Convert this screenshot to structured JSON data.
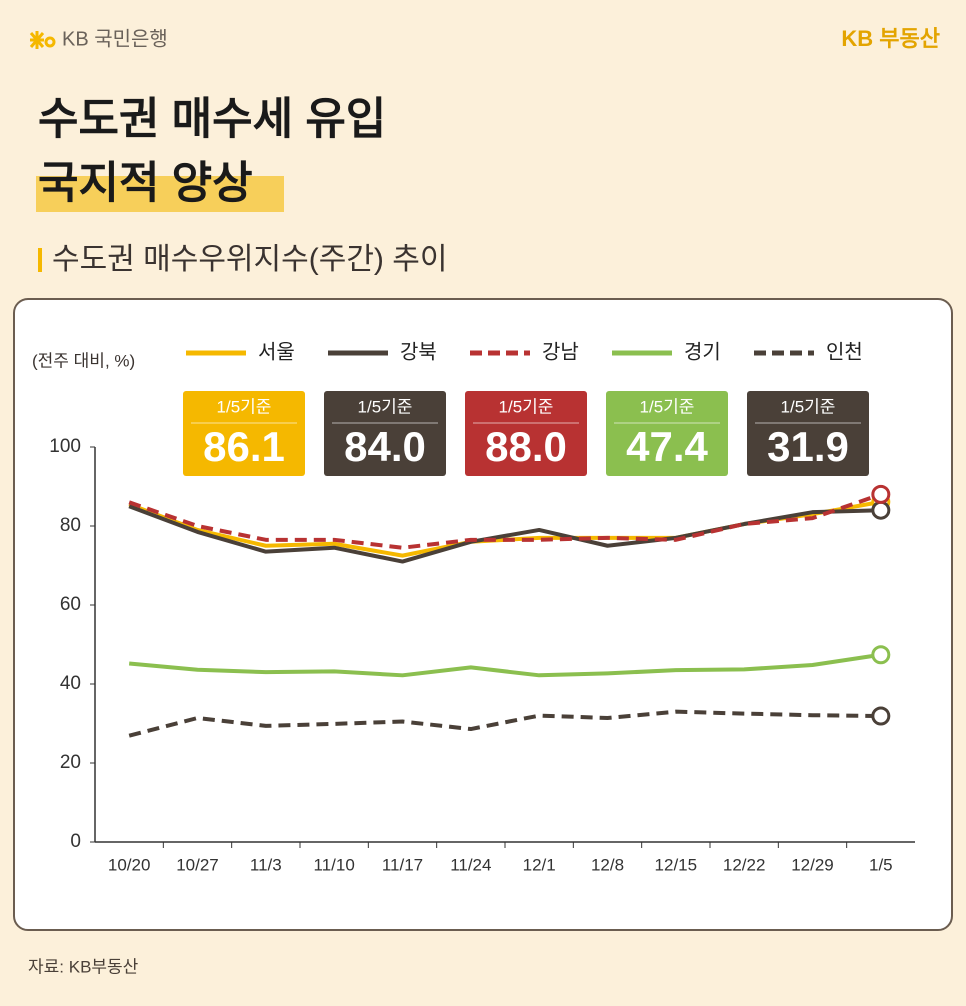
{
  "header": {
    "bank": "KB 국민은행",
    "brand": "KB 부동산"
  },
  "title": [
    "수도권 매수세 유입",
    "국지적 양상"
  ],
  "subtitle": "수도권 매수우위지수(주간) 추이",
  "source": "자료: KB부동산",
  "chart_data": {
    "type": "line",
    "unit_label": "(전주 대비, %)",
    "badge_label": "1/5기준",
    "categories": [
      "10/20",
      "10/27",
      "11/3",
      "11/10",
      "11/17",
      "11/24",
      "12/1",
      "12/8",
      "12/15",
      "12/22",
      "12/29",
      "1/5"
    ],
    "ylim": [
      0,
      100
    ],
    "yticks": [
      0,
      20,
      40,
      60,
      80,
      100
    ],
    "grid": false,
    "series": [
      {
        "name": "서울",
        "color": "#f5b800",
        "dashed": false,
        "values": [
          85.5,
          79,
          75,
          75.5,
          72.5,
          76,
          77,
          77,
          77,
          80.5,
          83,
          86.1
        ],
        "value_labels": [
          null,
          null,
          null,
          null,
          null,
          null,
          null,
          null,
          null,
          null,
          null,
          "86.1"
        ]
      },
      {
        "name": "강북",
        "color": "#4a4038",
        "dashed": false,
        "values": [
          85,
          78.5,
          73.5,
          74.5,
          71,
          76,
          79,
          75,
          77,
          80.5,
          83.5,
          84.0
        ],
        "value_labels": [
          null,
          null,
          null,
          null,
          null,
          null,
          null,
          null,
          null,
          null,
          null,
          "84.0"
        ]
      },
      {
        "name": "강남",
        "color": "#b83232",
        "dashed": true,
        "values": [
          86,
          80,
          76.5,
          76.5,
          74.5,
          76.5,
          76.5,
          77,
          76.5,
          80.5,
          82,
          88.0
        ],
        "value_labels": [
          null,
          null,
          null,
          null,
          null,
          null,
          null,
          null,
          null,
          null,
          null,
          "88.0"
        ]
      },
      {
        "name": "경기",
        "color": "#8bbf4f",
        "dashed": false,
        "values": [
          45.2,
          43.6,
          43,
          43.2,
          42.2,
          44.2,
          42.2,
          42.7,
          43.5,
          43.7,
          44.8,
          47.4
        ],
        "value_labels": [
          null,
          null,
          null,
          null,
          null,
          null,
          null,
          null,
          null,
          null,
          null,
          "47.4"
        ]
      },
      {
        "name": "인천",
        "color": "#4a4038",
        "dashed": true,
        "values": [
          26.9,
          31.4,
          29.4,
          29.9,
          30.5,
          28.6,
          32,
          31.4,
          33,
          32.5,
          32.1,
          31.9
        ],
        "value_labels": [
          null,
          null,
          null,
          null,
          null,
          null,
          null,
          null,
          null,
          null,
          null,
          "31.9"
        ]
      }
    ]
  }
}
